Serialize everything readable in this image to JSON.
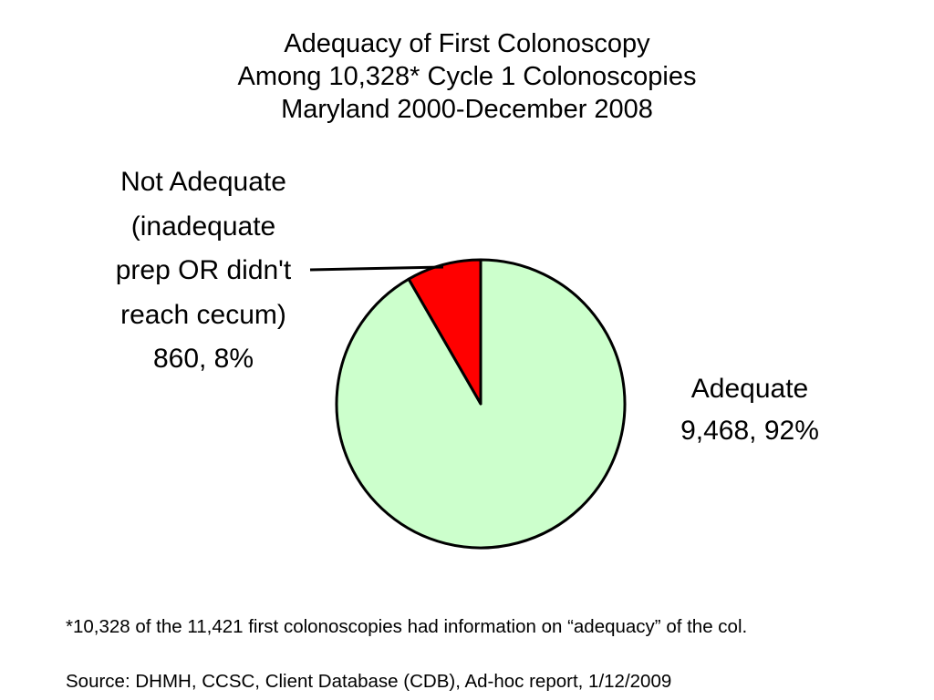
{
  "chart_data": {
    "type": "pie",
    "title_lines": [
      "Adequacy of First Colonoscopy",
      "Among 10,328* Cycle 1 Colonoscopies",
      "Maryland 2000-December 2008"
    ],
    "slices": [
      {
        "label_lines": [
          "Not Adequate",
          "(inadequate",
          "prep OR didn't",
          "reach cecum)",
          "860, 8%"
        ],
        "value": 860,
        "percent": 8,
        "color": "#ff0000"
      },
      {
        "label_lines": [
          "Adequate",
          "9,468, 92%"
        ],
        "value": 9468,
        "percent": 92,
        "color": "#ccffcc"
      }
    ]
  },
  "footnotes": {
    "note": "*10,328 of the 11,421 first colonoscopies had information on “adequacy” of the col.",
    "source": "Source: DHMH, CCSC, Client Database (CDB), Ad-hoc report, 1/12/2009"
  }
}
